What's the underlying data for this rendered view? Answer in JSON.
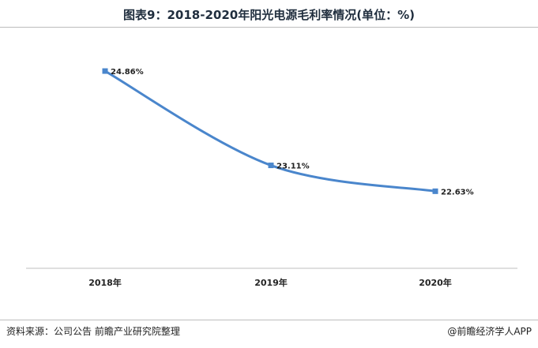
{
  "header": {
    "title": "图表9：2018-2020年阳光电源毛利率情况(单位：%)"
  },
  "footer": {
    "source": "资料来源：公司公告 前瞻产业研究院整理",
    "brand": "@前瞻经济学人APP"
  },
  "chart_data": {
    "type": "line",
    "title": "图表9：2018-2020年阳光电源毛利率情况(单位：%)",
    "categories": [
      "2018年",
      "2019年",
      "2020年"
    ],
    "series": [
      {
        "values": [
          24.86,
          23.11,
          22.63
        ],
        "labels": [
          "24.86%",
          "23.11%",
          "22.63%"
        ]
      }
    ],
    "ylim": [
      21.2,
      25.3
    ],
    "grid": false,
    "legend": "none",
    "line_color": "#4a86cc",
    "marker": "square"
  }
}
